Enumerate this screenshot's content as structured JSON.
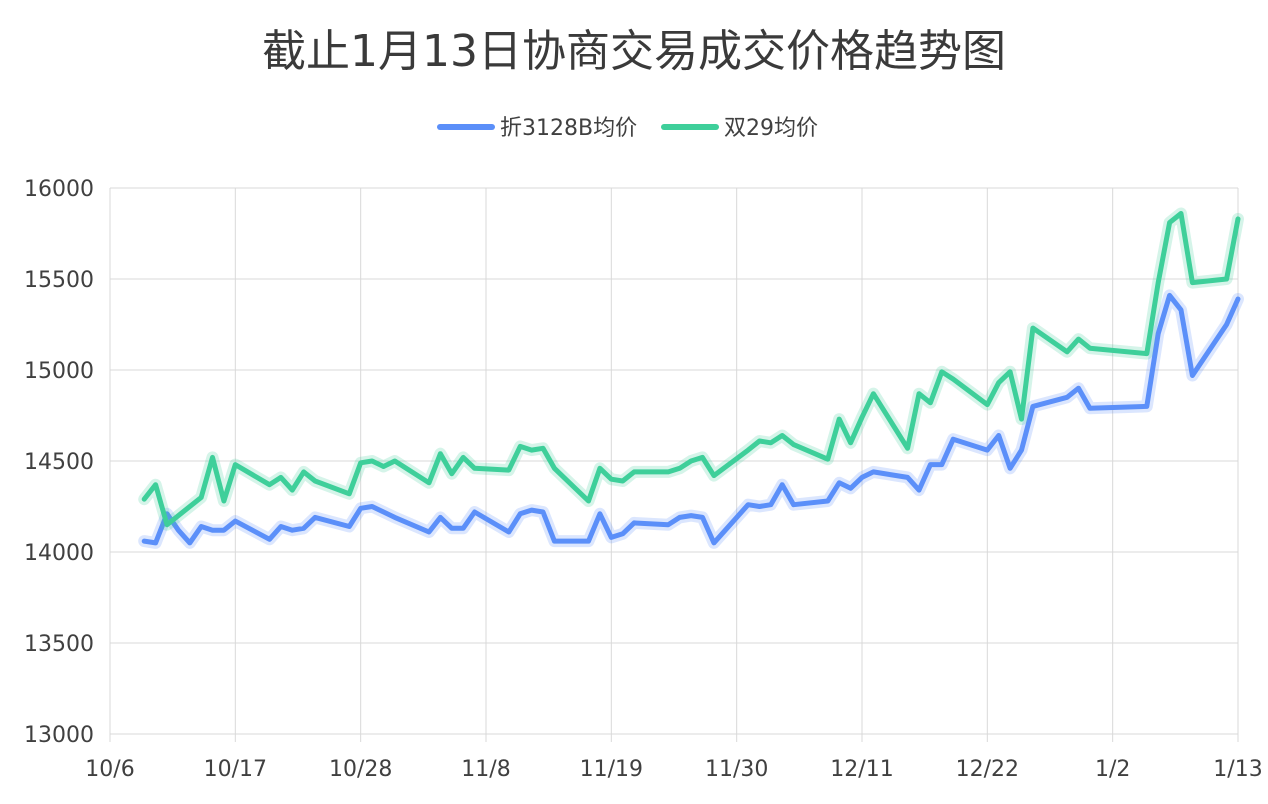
{
  "chart_data": {
    "type": "line",
    "title": "截止1月13日协商交易成交价格趋势图",
    "xlabel": "",
    "ylabel": "",
    "ylim": [
      13000,
      16000
    ],
    "yticks": [
      "13000",
      "13500",
      "14000",
      "14500",
      "15000",
      "15500",
      "16000"
    ],
    "xtick_labels": [
      "10/6",
      "10/17",
      "10/28",
      "11/8",
      "11/19",
      "11/30",
      "12/11",
      "12/22",
      "1/2",
      "1/13"
    ],
    "xlim": [
      "10/6",
      "1/13"
    ],
    "grid": true,
    "legend_position": "top-center",
    "series": [
      {
        "name": "折3128B均价",
        "color": "#5b8ff9",
        "points": [
          [
            "10/9",
            14060
          ],
          [
            "10/10",
            14050
          ],
          [
            "10/11",
            14210
          ],
          [
            "10/12",
            14120
          ],
          [
            "10/13",
            14050
          ],
          [
            "10/14",
            14140
          ],
          [
            "10/15",
            14120
          ],
          [
            "10/16",
            14120
          ],
          [
            "10/17",
            14170
          ],
          [
            "10/20",
            14070
          ],
          [
            "10/21",
            14140
          ],
          [
            "10/22",
            14120
          ],
          [
            "10/23",
            14130
          ],
          [
            "10/24",
            14190
          ],
          [
            "10/27",
            14140
          ],
          [
            "10/28",
            14240
          ],
          [
            "10/29",
            14250
          ],
          [
            "10/31",
            14190
          ],
          [
            "11/3",
            14110
          ],
          [
            "11/4",
            14190
          ],
          [
            "11/5",
            14130
          ],
          [
            "11/6",
            14130
          ],
          [
            "11/7",
            14220
          ],
          [
            "11/10",
            14110
          ],
          [
            "11/11",
            14210
          ],
          [
            "11/12",
            14230
          ],
          [
            "11/13",
            14220
          ],
          [
            "11/14",
            14060
          ],
          [
            "11/17",
            14060
          ],
          [
            "11/18",
            14210
          ],
          [
            "11/19",
            14080
          ],
          [
            "11/20",
            14100
          ],
          [
            "11/21",
            14160
          ],
          [
            "11/24",
            14150
          ],
          [
            "11/25",
            14190
          ],
          [
            "11/26",
            14200
          ],
          [
            "11/27",
            14190
          ],
          [
            "11/28",
            14050
          ],
          [
            "12/1",
            14260
          ],
          [
            "12/2",
            14250
          ],
          [
            "12/3",
            14260
          ],
          [
            "12/4",
            14370
          ],
          [
            "12/5",
            14260
          ],
          [
            "12/8",
            14280
          ],
          [
            "12/9",
            14380
          ],
          [
            "12/10",
            14350
          ],
          [
            "12/11",
            14410
          ],
          [
            "12/12",
            14440
          ],
          [
            "12/15",
            14410
          ],
          [
            "12/16",
            14340
          ],
          [
            "12/17",
            14480
          ],
          [
            "12/18",
            14480
          ],
          [
            "12/19",
            14620
          ],
          [
            "12/22",
            14560
          ],
          [
            "12/23",
            14640
          ],
          [
            "12/24",
            14460
          ],
          [
            "12/25",
            14560
          ],
          [
            "12/26",
            14800
          ],
          [
            "12/29",
            14850
          ],
          [
            "12/30",
            14900
          ],
          [
            "12/31",
            14790
          ],
          [
            "1/5",
            14800
          ],
          [
            "1/6",
            15200
          ],
          [
            "1/7",
            15410
          ],
          [
            "1/8",
            15330
          ],
          [
            "1/9",
            14970
          ],
          [
            "1/12",
            15250
          ],
          [
            "1/13",
            15390
          ]
        ]
      },
      {
        "name": "双29均价",
        "color": "#3ecf9a",
        "points": [
          [
            "10/9",
            14290
          ],
          [
            "10/10",
            14370
          ],
          [
            "10/11",
            14150
          ],
          [
            "10/14",
            14300
          ],
          [
            "10/15",
            14520
          ],
          [
            "10/16",
            14280
          ],
          [
            "10/17",
            14480
          ],
          [
            "10/20",
            14370
          ],
          [
            "10/21",
            14410
          ],
          [
            "10/22",
            14340
          ],
          [
            "10/23",
            14440
          ],
          [
            "10/24",
            14390
          ],
          [
            "10/27",
            14320
          ],
          [
            "10/28",
            14490
          ],
          [
            "10/29",
            14500
          ],
          [
            "10/30",
            14470
          ],
          [
            "10/31",
            14500
          ],
          [
            "11/3",
            14380
          ],
          [
            "11/4",
            14540
          ],
          [
            "11/5",
            14430
          ],
          [
            "11/6",
            14520
          ],
          [
            "11/7",
            14460
          ],
          [
            "11/10",
            14450
          ],
          [
            "11/11",
            14580
          ],
          [
            "11/12",
            14560
          ],
          [
            "11/13",
            14570
          ],
          [
            "11/14",
            14460
          ],
          [
            "11/17",
            14280
          ],
          [
            "11/18",
            14460
          ],
          [
            "11/19",
            14400
          ],
          [
            "11/20",
            14390
          ],
          [
            "11/21",
            14440
          ],
          [
            "11/24",
            14440
          ],
          [
            "11/25",
            14460
          ],
          [
            "11/26",
            14500
          ],
          [
            "11/27",
            14520
          ],
          [
            "11/28",
            14420
          ],
          [
            "12/1",
            14560
          ],
          [
            "12/2",
            14610
          ],
          [
            "12/3",
            14600
          ],
          [
            "12/4",
            14640
          ],
          [
            "12/5",
            14590
          ],
          [
            "12/8",
            14510
          ],
          [
            "12/9",
            14730
          ],
          [
            "12/10",
            14600
          ],
          [
            "12/11",
            14740
          ],
          [
            "12/12",
            14870
          ],
          [
            "12/15",
            14570
          ],
          [
            "12/16",
            14870
          ],
          [
            "12/17",
            14820
          ],
          [
            "12/18",
            14990
          ],
          [
            "12/19",
            14950
          ],
          [
            "12/22",
            14810
          ],
          [
            "12/23",
            14930
          ],
          [
            "12/24",
            14990
          ],
          [
            "12/25",
            14730
          ],
          [
            "12/26",
            15230
          ],
          [
            "12/29",
            15100
          ],
          [
            "12/30",
            15170
          ],
          [
            "12/31",
            15120
          ],
          [
            "1/5",
            15090
          ],
          [
            "1/6",
            15480
          ],
          [
            "1/7",
            15810
          ],
          [
            "1/8",
            15860
          ],
          [
            "1/9",
            15480
          ],
          [
            "1/12",
            15500
          ],
          [
            "1/13",
            15830
          ]
        ]
      }
    ]
  }
}
